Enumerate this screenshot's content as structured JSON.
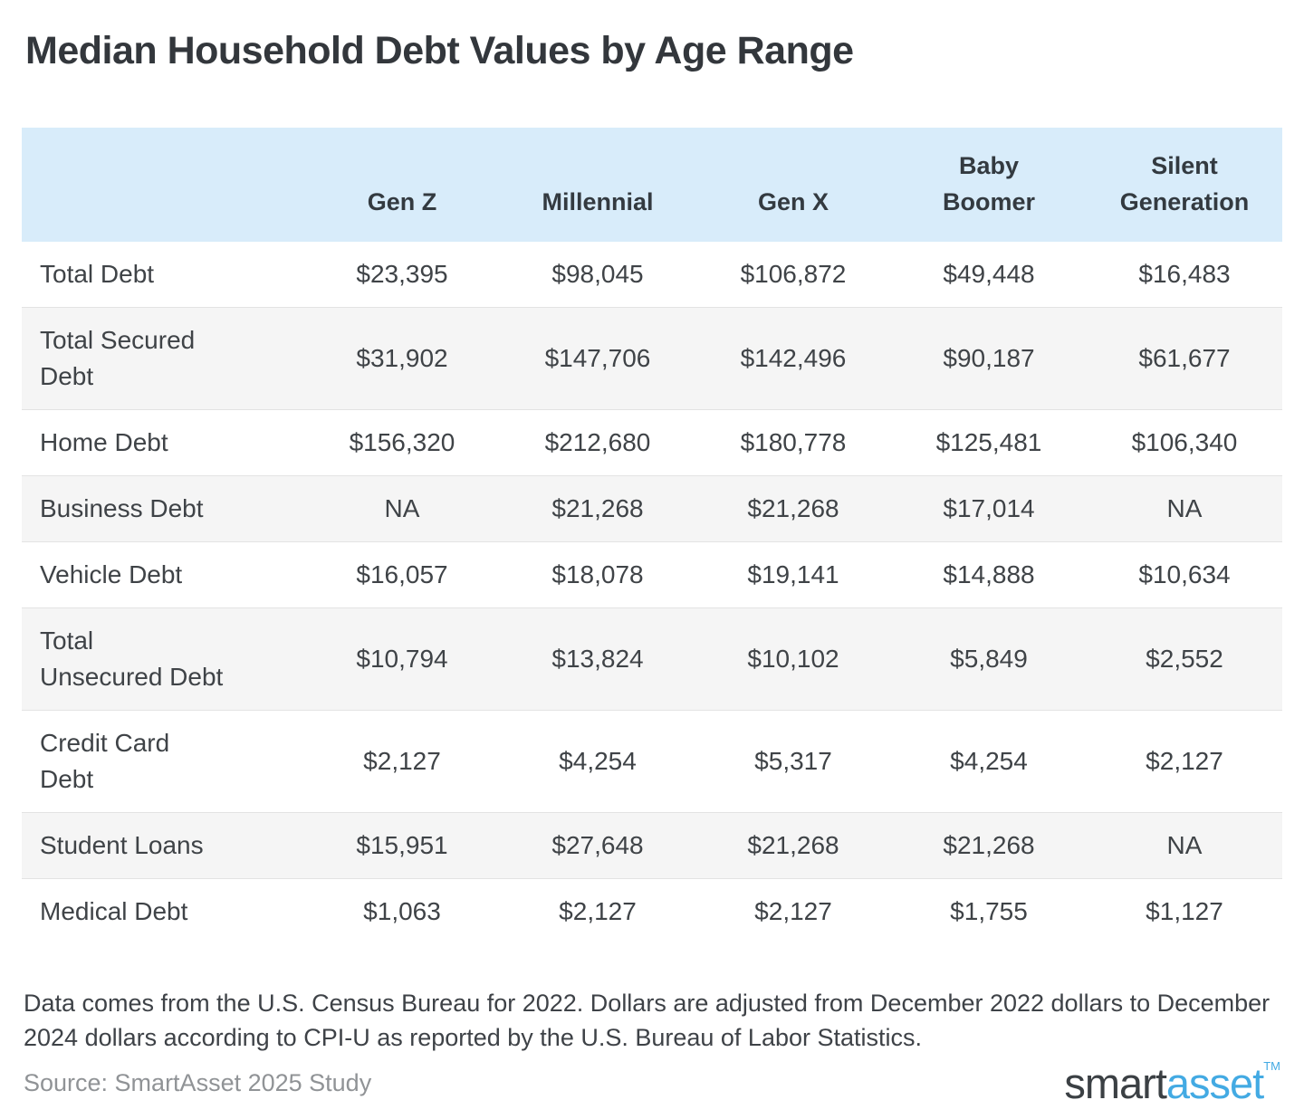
{
  "title": "Median Household Debt Values by Age Range",
  "table": {
    "columns": [
      "",
      "Gen Z",
      "Millennial",
      "Gen X",
      "Baby\nBoomer",
      "Silent\nGeneration"
    ],
    "rows": [
      {
        "label": "Total Debt",
        "values": [
          "$23,395",
          "$98,045",
          "$106,872",
          "$49,448",
          "$16,483"
        ]
      },
      {
        "label": "Total Secured\nDebt",
        "values": [
          "$31,902",
          "$147,706",
          "$142,496",
          "$90,187",
          "$61,677"
        ]
      },
      {
        "label": "Home Debt",
        "values": [
          "$156,320",
          "$212,680",
          "$180,778",
          "$125,481",
          "$106,340"
        ]
      },
      {
        "label": "Business Debt",
        "values": [
          "NA",
          "$21,268",
          "$21,268",
          "$17,014",
          "NA"
        ]
      },
      {
        "label": "Vehicle Debt",
        "values": [
          "$16,057",
          "$18,078",
          "$19,141",
          "$14,888",
          "$10,634"
        ]
      },
      {
        "label": "Total\nUnsecured Debt",
        "values": [
          "$10,794",
          "$13,824",
          "$10,102",
          "$5,849",
          "$2,552"
        ]
      },
      {
        "label": "Credit Card\nDebt",
        "values": [
          "$2,127",
          "$4,254",
          "$5,317",
          "$4,254",
          "$2,127"
        ]
      },
      {
        "label": "Student Loans",
        "values": [
          "$15,951",
          "$27,648",
          "$21,268",
          "$21,268",
          "NA"
        ]
      },
      {
        "label": "Medical Debt",
        "values": [
          "$1,063",
          "$2,127",
          "$2,127",
          "$1,755",
          "$1,127"
        ]
      }
    ]
  },
  "footnote": "Data comes from the U.S. Census Bureau for 2022. Dollars are adjusted from December 2022 dollars to December 2024 dollars according to CPI-U as reported by the U.S. Bureau of Labor Statistics.",
  "source": "Source: SmartAsset 2025 Study",
  "logo": {
    "part1": "smart",
    "part2": "asset",
    "tm": "TM"
  },
  "colors": {
    "header_bg": "#d8ecfa",
    "alt_row_bg": "#f5f5f5",
    "divider": "#e3e3e3",
    "title_text": "#33373c",
    "body_text": "#3f4347",
    "source_text": "#909396",
    "logo_dark": "#3b4044",
    "logo_blue": "#43aae3"
  },
  "chart_data": {
    "type": "table",
    "title": "Median Household Debt Values by Age Range",
    "categories": [
      "Gen Z",
      "Millennial",
      "Gen X",
      "Baby Boomer",
      "Silent Generation"
    ],
    "series": [
      {
        "name": "Total Debt",
        "values": [
          23395,
          98045,
          106872,
          49448,
          16483
        ]
      },
      {
        "name": "Total Secured Debt",
        "values": [
          31902,
          147706,
          142496,
          90187,
          61677
        ]
      },
      {
        "name": "Home Debt",
        "values": [
          156320,
          212680,
          180778,
          125481,
          106340
        ]
      },
      {
        "name": "Business Debt",
        "values": [
          null,
          21268,
          21268,
          17014,
          null
        ]
      },
      {
        "name": "Vehicle Debt",
        "values": [
          16057,
          18078,
          19141,
          14888,
          10634
        ]
      },
      {
        "name": "Total Unsecured Debt",
        "values": [
          10794,
          13824,
          10102,
          5849,
          2552
        ]
      },
      {
        "name": "Credit Card Debt",
        "values": [
          2127,
          4254,
          5317,
          4254,
          2127
        ]
      },
      {
        "name": "Student Loans",
        "values": [
          15951,
          27648,
          21268,
          21268,
          null
        ]
      },
      {
        "name": "Medical Debt",
        "values": [
          1063,
          2127,
          2127,
          1755,
          1127
        ]
      }
    ],
    "na_label": "NA",
    "unit": "USD",
    "notes": "Values are medians adjusted to December 2024 dollars (CPI-U)."
  }
}
